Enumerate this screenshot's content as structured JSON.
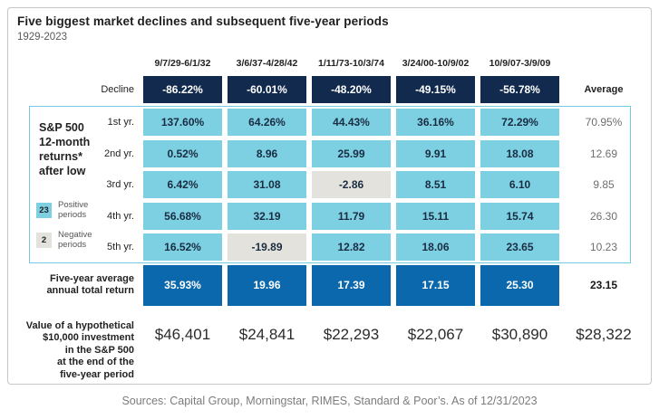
{
  "title": "Five biggest market declines and subsequent five-year periods",
  "subtitle": "1929-2023",
  "columns": [
    "9/7/29-6/1/32",
    "3/6/37-4/28/42",
    "1/11/73-10/3/74",
    "3/24/00-10/9/02",
    "10/9/07-3/9/09"
  ],
  "header": {
    "decline_label": "Decline",
    "average_label": "Average"
  },
  "decline": {
    "values": [
      "-86.22%",
      "-60.01%",
      "-48.20%",
      "-49.15%",
      "-56.78%"
    ]
  },
  "side": {
    "heading_lines": [
      "S&P 500",
      "12-month",
      "returns*",
      "after low"
    ],
    "legend": [
      {
        "count": "23",
        "line1": "Positive",
        "line2": "periods"
      },
      {
        "count": "2",
        "line1": "Negative",
        "line2": "periods"
      }
    ]
  },
  "year_rows": [
    {
      "label": "1st yr.",
      "values": [
        "137.60%",
        "64.26%",
        "44.43%",
        "36.16%",
        "72.29%"
      ],
      "average": "70.95%"
    },
    {
      "label": "2nd yr.",
      "values": [
        "0.52%",
        "8.96",
        "25.99",
        "9.91",
        "18.08"
      ],
      "average": "12.69"
    },
    {
      "label": "3rd yr.",
      "values": [
        "6.42%",
        "31.08",
        "-2.86",
        "8.51",
        "6.10"
      ],
      "average": "9.85"
    },
    {
      "label": "4th yr.",
      "values": [
        "56.68%",
        "32.19",
        "11.79",
        "15.11",
        "15.74"
      ],
      "average": "26.30"
    },
    {
      "label": "5th yr.",
      "values": [
        "16.52%",
        "-19.89",
        "12.82",
        "18.06",
        "23.65"
      ],
      "average": "10.23"
    }
  ],
  "five_year": {
    "label_line1": "Five-year average",
    "label_line2": "annual total return",
    "values": [
      "35.93%",
      "19.96",
      "17.39",
      "17.15",
      "25.30"
    ],
    "average": "23.15"
  },
  "hypothetical": {
    "label_lines": [
      "Value of a hypothetical",
      "$10,000 investment",
      "in the S&P 500",
      "at the end of the",
      "five-year period"
    ],
    "values": [
      "$46,401",
      "$24,841",
      "$22,293",
      "$22,067",
      "$30,890"
    ],
    "average": "$28,322"
  },
  "footer": "Sources: Capital Group, Morningstar, RIMES, Standard & Poor’s. As of 12/31/2023",
  "colors": {
    "decline_cell": "#122a4d",
    "positive_cell": "#7dd0e2",
    "negative_cell": "#e4e2dd",
    "five_year_cell": "#0b68ad",
    "highlight_border": "#74cce0"
  },
  "chart_data": {
    "type": "table",
    "title": "Five biggest market declines and subsequent five-year periods",
    "subtitle": "1929-2023",
    "columns": [
      "9/7/29-6/1/32",
      "3/6/37-4/28/42",
      "1/11/73-10/3/74",
      "3/24/00-10/9/02",
      "10/9/07-3/9/09",
      "Average"
    ],
    "rows": [
      {
        "label": "Decline",
        "unit": "percent",
        "values": [
          -86.22,
          -60.01,
          -48.2,
          -49.15,
          -56.78
        ],
        "average": null
      },
      {
        "label": "1st yr.",
        "unit": "percent",
        "values": [
          137.6,
          64.26,
          44.43,
          36.16,
          72.29
        ],
        "average": 70.95
      },
      {
        "label": "2nd yr.",
        "unit": "percent",
        "values": [
          0.52,
          8.96,
          25.99,
          9.91,
          18.08
        ],
        "average": 12.69
      },
      {
        "label": "3rd yr.",
        "unit": "percent",
        "values": [
          6.42,
          31.08,
          -2.86,
          8.51,
          6.1
        ],
        "average": 9.85
      },
      {
        "label": "4th yr.",
        "unit": "percent",
        "values": [
          56.68,
          32.19,
          11.79,
          15.11,
          15.74
        ],
        "average": 26.3
      },
      {
        "label": "5th yr.",
        "unit": "percent",
        "values": [
          16.52,
          -19.89,
          12.82,
          18.06,
          23.65
        ],
        "average": 10.23
      },
      {
        "label": "Five-year average annual total return",
        "unit": "percent",
        "values": [
          35.93,
          19.96,
          17.39,
          17.15,
          25.3
        ],
        "average": 23.15
      },
      {
        "label": "Value of a hypothetical $10,000 investment in the S&P 500 at the end of the five-year period",
        "unit": "USD",
        "values": [
          46401,
          24841,
          22293,
          22067,
          30890
        ],
        "average": 28322
      }
    ],
    "positive_periods_count": 23,
    "negative_periods_count": 2,
    "legend_position": "left",
    "grid": false
  }
}
